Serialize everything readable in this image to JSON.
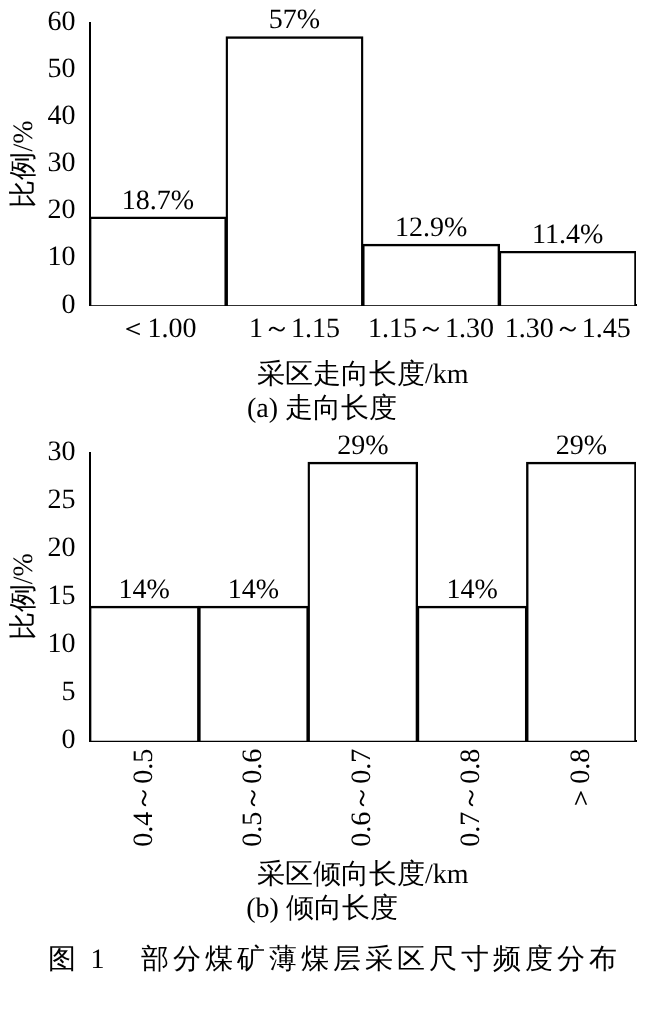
{
  "chart_data": [
    {
      "type": "bar",
      "ylabel": "比例/%",
      "xlabel": "采区走向长度/km",
      "subtitle": "(a) 走向长度",
      "categories": [
        "＜1.00",
        "1～1.15",
        "1.15～1.30",
        "1.30～1.45"
      ],
      "values": [
        18.7,
        57,
        12.9,
        11.4
      ],
      "value_labels": [
        "18.7%",
        "57%",
        "12.9%",
        "11.4%"
      ],
      "color": "#ffffff",
      "ylim": [
        0,
        60
      ],
      "yticks": [
        0,
        10,
        20,
        30,
        40,
        50,
        60
      ],
      "grid": false,
      "legend": false
    },
    {
      "type": "bar",
      "ylabel": "比例/%",
      "xlabel": "采区倾向长度/km",
      "subtitle": "(b) 倾向长度",
      "categories": [
        "0.4～0.5",
        "0.5～0.6",
        "0.6～0.7",
        "0.7～0.8",
        "＞0.8"
      ],
      "values": [
        14,
        14,
        29,
        14,
        29
      ],
      "value_labels": [
        "14%",
        "14%",
        "29%",
        "14%",
        "29%"
      ],
      "color": "#ffffff",
      "ylim": [
        0,
        30
      ],
      "yticks": [
        0,
        5,
        10,
        15,
        20,
        25,
        30
      ],
      "grid": false,
      "legend": false,
      "annotations": [
        "图 1　部分煤矿薄煤层采区尺寸频度分布"
      ]
    }
  ]
}
